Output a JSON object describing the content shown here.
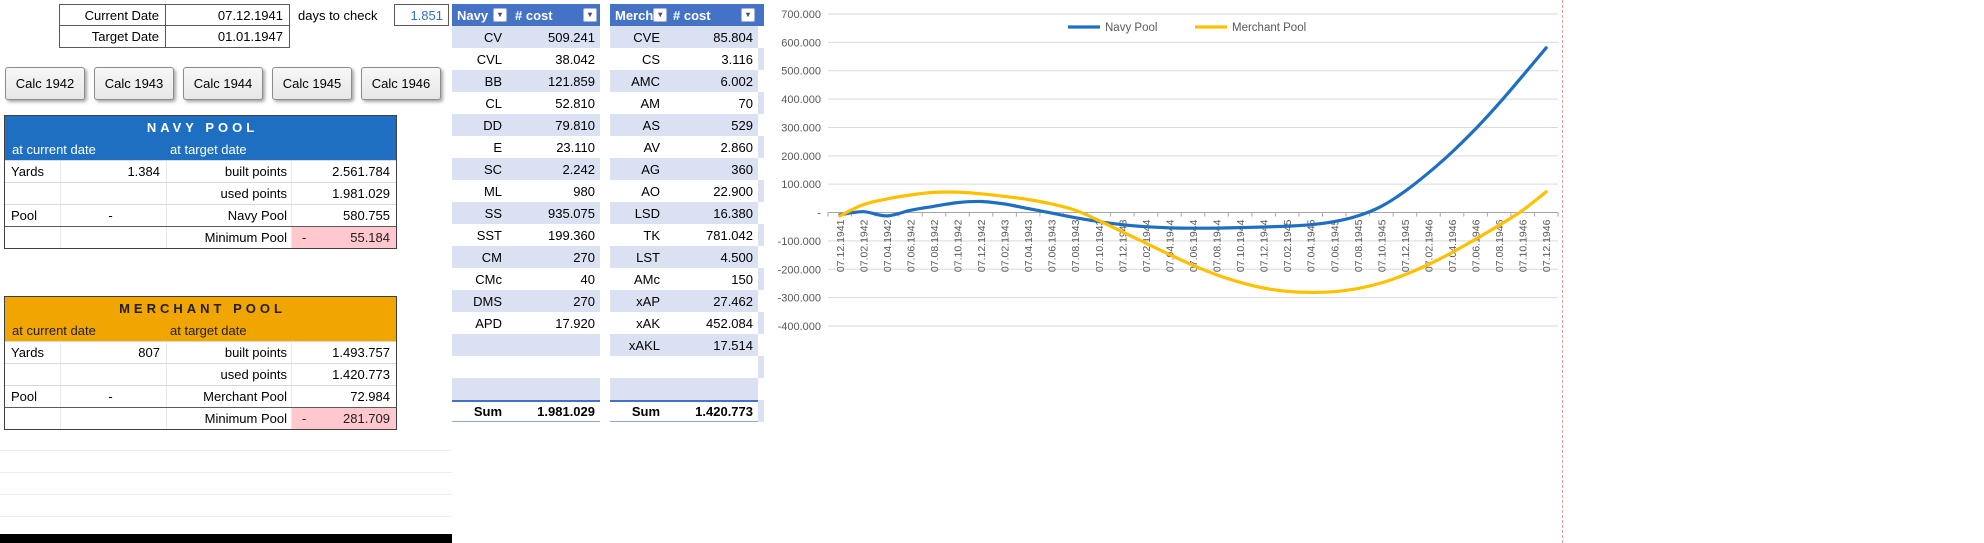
{
  "colors": {
    "navy_header_blue": "#1E6FC1",
    "merchant_gold": "#F0A500",
    "table_header_blue": "#4472C4",
    "band_blue": "#D9E1F2",
    "negative_pink": "#FFC7CE",
    "value_link_blue": "#2E75B6",
    "chart_navy_line": "#1E6FC1",
    "chart_merchant_line": "#FFC000"
  },
  "top_rows": {
    "current_date_label": "Current Date",
    "current_date_value": "07.12.1941",
    "target_date_label": "Target Date",
    "target_date_value": "01.01.1947",
    "days_to_check_label": "days to check",
    "days_to_check_value": "1.851"
  },
  "calc_buttons": [
    "Calc 1942",
    "Calc 1943",
    "Calc 1944",
    "Calc 1945",
    "Calc 1946"
  ],
  "navy_pool": {
    "title": "NAVY POOL",
    "subheader_left": "at current date",
    "subheader_right": "at target date",
    "rows": [
      {
        "label_a": "Yards",
        "value_a": "1.384",
        "label_b": "built points",
        "value_b": "2.561.784"
      },
      {
        "label_a": "",
        "value_a": "",
        "label_b": "used points",
        "value_b": "1.981.029"
      },
      {
        "label_a": "Pool",
        "value_a": "-",
        "label_b": "Navy Pool",
        "value_b": "580.755"
      },
      {
        "label_a": "",
        "value_a": "",
        "label_b": "Minimum Pool",
        "sign": "-",
        "value_b": "55.184"
      }
    ]
  },
  "merchant_pool": {
    "title": "MERCHANT POOL",
    "subheader_left": "at current date",
    "subheader_right": "at target date",
    "rows": [
      {
        "label_a": "Yards",
        "value_a": "807",
        "label_b": "built points",
        "value_b": "1.493.757"
      },
      {
        "label_a": "",
        "value_a": "",
        "label_b": "used points",
        "value_b": "1.420.773"
      },
      {
        "label_a": "Pool",
        "value_a": "-",
        "label_b": "Merchant Pool",
        "value_b": "72.984"
      },
      {
        "label_a": "",
        "value_a": "",
        "label_b": "Minimum Pool",
        "sign": "-",
        "value_b": "281.709"
      }
    ]
  },
  "cost_tables": {
    "navy": {
      "headers": [
        "Navy",
        "# cost"
      ],
      "rows": [
        [
          "CV",
          "509.241"
        ],
        [
          "CVL",
          "38.042"
        ],
        [
          "BB",
          "121.859"
        ],
        [
          "CL",
          "52.810"
        ],
        [
          "DD",
          "79.810"
        ],
        [
          "E",
          "23.110"
        ],
        [
          "SC",
          "2.242"
        ],
        [
          "ML",
          "980"
        ],
        [
          "SS",
          "935.075"
        ],
        [
          "SST",
          "199.360"
        ],
        [
          "CM",
          "270"
        ],
        [
          "CMc",
          "40"
        ],
        [
          "DMS",
          "270"
        ],
        [
          "APD",
          "17.920"
        ],
        [
          "",
          ""
        ],
        [
          "",
          ""
        ],
        [
          "",
          ""
        ]
      ],
      "sum_label": "Sum",
      "sum_value": "1.981.029"
    },
    "merchant": {
      "headers": [
        "Merch",
        "# cost"
      ],
      "rows": [
        [
          "CVE",
          "85.804"
        ],
        [
          "CS",
          "3.116"
        ],
        [
          "AMC",
          "6.002"
        ],
        [
          "AM",
          "70"
        ],
        [
          "AS",
          "529"
        ],
        [
          "AV",
          "2.860"
        ],
        [
          "AG",
          "360"
        ],
        [
          "AO",
          "22.900"
        ],
        [
          "LSD",
          "16.380"
        ],
        [
          "TK",
          "781.042"
        ],
        [
          "LST",
          "4.500"
        ],
        [
          "AMc",
          "150"
        ],
        [
          "xAP",
          "27.462"
        ],
        [
          "xAK",
          "452.084"
        ],
        [
          "xAKL",
          "17.514"
        ],
        [
          "",
          ""
        ],
        [
          "",
          ""
        ]
      ],
      "sum_label": "Sum",
      "sum_value": "1.420.773"
    }
  },
  "chart_data": {
    "type": "line",
    "title": "",
    "grid": true,
    "legend_position": "top",
    "ylim": [
      -400000,
      700000
    ],
    "y_ticks": [
      700000,
      600000,
      500000,
      400000,
      300000,
      200000,
      100000,
      0,
      -100000,
      -200000,
      -300000,
      -400000
    ],
    "y_tick_labels": [
      "700.000",
      "600.000",
      "500.000",
      "400.000",
      "300.000",
      "200.000",
      "100.000",
      "-",
      "-100.000",
      "-200.000",
      "-300.000",
      "-400.000"
    ],
    "x": [
      "07.12.1941",
      "07.02.1942",
      "07.04.1942",
      "07.06.1942",
      "07.08.1942",
      "07.10.1942",
      "07.12.1942",
      "07.02.1943",
      "07.04.1943",
      "07.06.1943",
      "07.08.1943",
      "07.10.1943",
      "07.12.1943",
      "07.02.1944",
      "07.04.1944",
      "07.06.1944",
      "07.08.1944",
      "07.10.1944",
      "07.12.1944",
      "07.02.1945",
      "07.04.1945",
      "07.06.1945",
      "07.08.1945",
      "07.10.1945",
      "07.12.1945",
      "07.02.1946",
      "07.04.1946",
      "07.06.1946",
      "07.08.1946",
      "07.10.1946",
      "07.12.1946"
    ],
    "series": [
      {
        "name": "Navy Pool",
        "color": "#1E6FC1",
        "values": [
          -8000,
          3000,
          -12000,
          8000,
          22000,
          35000,
          39000,
          30000,
          14000,
          -2000,
          -18000,
          -32000,
          -43000,
          -50000,
          -54000,
          -55184,
          -55000,
          -53000,
          -51000,
          -48000,
          -43000,
          -32000,
          -12000,
          22000,
          75000,
          140000,
          213000,
          295000,
          385000,
          482000,
          580755
        ]
      },
      {
        "name": "Merchant Pool",
        "color": "#FFC000",
        "values": [
          -12000,
          28000,
          48000,
          62000,
          71000,
          72000,
          66000,
          57000,
          46000,
          30000,
          8000,
          -28000,
          -68000,
          -108000,
          -148000,
          -186000,
          -219000,
          -246000,
          -266000,
          -278000,
          -281709,
          -279000,
          -268000,
          -248000,
          -219000,
          -183000,
          -141000,
          -94000,
          -45000,
          8000,
          72984
        ]
      }
    ]
  }
}
